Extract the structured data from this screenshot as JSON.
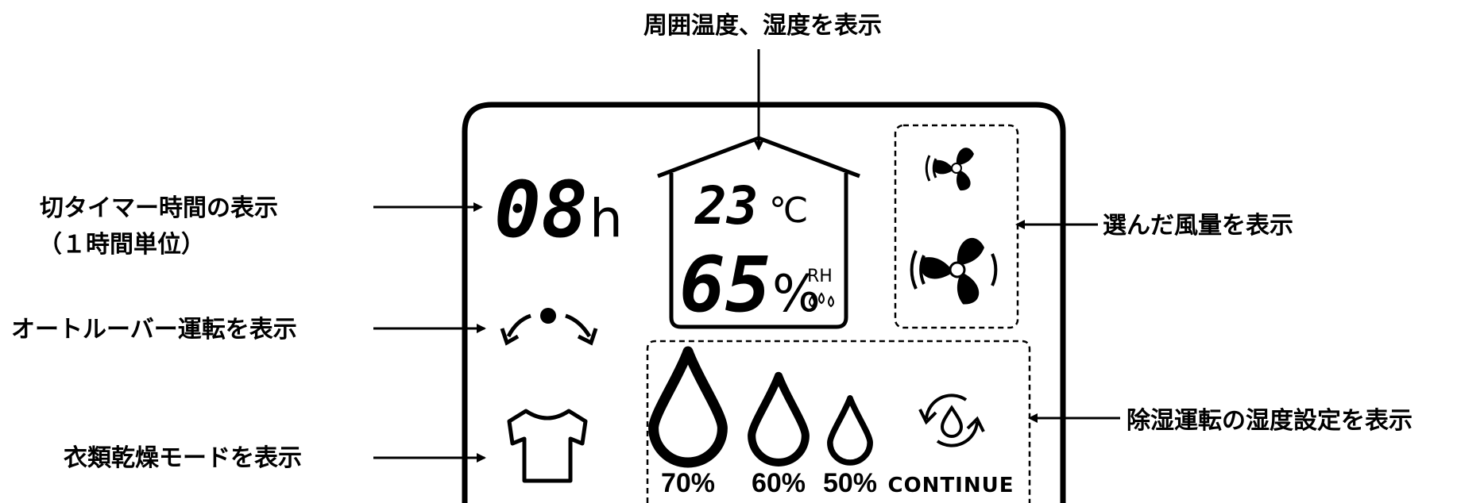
{
  "labels": {
    "top": "周囲温度、湿度を表示",
    "timer_line1": "切タイマー時間の表示",
    "timer_line2": "（１時間単位）",
    "louver": "オートルーバー運転を表示",
    "clothes": "衣類乾燥モードを表示",
    "fan": "選んだ風量を表示",
    "dehumid": "除湿運転の湿度設定を表示"
  },
  "display": {
    "timer_value": "08",
    "timer_unit": "h",
    "temperature": "23",
    "temperature_unit": "℃",
    "humidity": "65",
    "humidity_unit": "%",
    "humidity_sub": "RH",
    "settings": [
      {
        "label": "70%",
        "drop_scale": 1.0
      },
      {
        "label": "60%",
        "drop_scale": 0.78
      },
      {
        "label": "50%",
        "drop_scale": 0.58
      }
    ],
    "continue_label": "CONTINUE"
  },
  "icons": {
    "house": "house-icon",
    "fan_small": "fan-low-icon",
    "fan_large": "fan-high-icon",
    "louver": "auto-louver-icon",
    "shirt": "shirt-icon",
    "drop": "water-drop-icon",
    "continue": "continuous-cycle-icon"
  }
}
